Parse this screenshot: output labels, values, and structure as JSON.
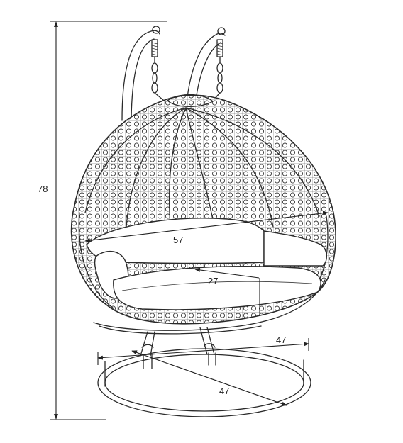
{
  "dimensions": {
    "height": "78",
    "width": "57",
    "seat_depth": "27",
    "base_width": "47",
    "base_depth": "47"
  },
  "colors": {
    "line": "#2a2a2a",
    "background": "#ffffff"
  }
}
